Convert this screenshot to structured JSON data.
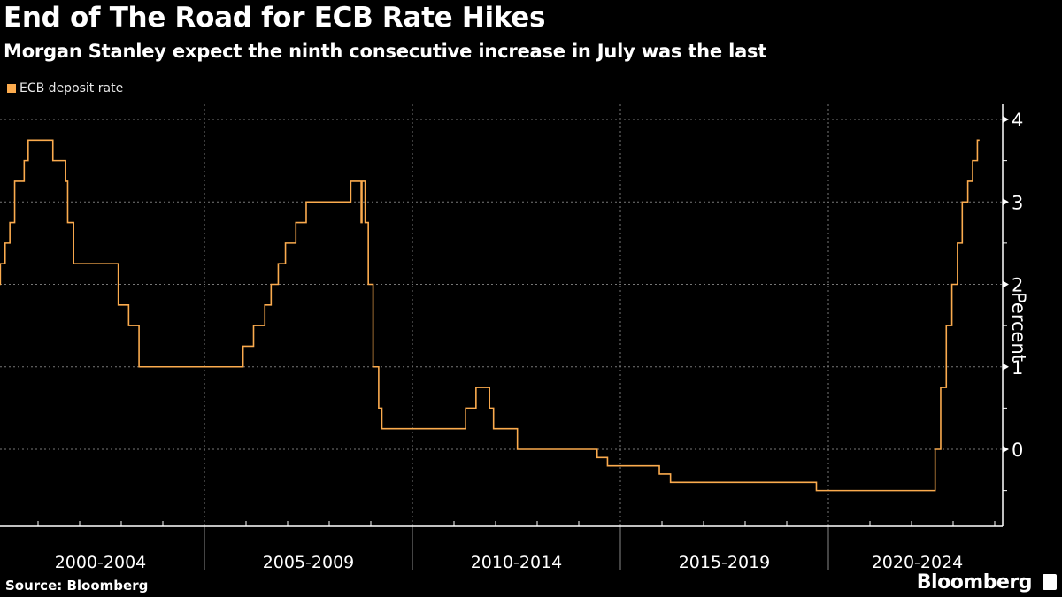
{
  "header": {
    "title": "End of The Road for ECB Rate Hikes",
    "subtitle": "Morgan Stanley expect the ninth consecutive increase in July was the last"
  },
  "footer": {
    "source": "Source: Bloomberg",
    "brand": "Bloomberg"
  },
  "colors": {
    "series": "#fbab4e",
    "background": "#000000",
    "axis": "#ffffff",
    "grid": "#777777"
  },
  "chart_data": {
    "type": "line",
    "step": true,
    "title": "End of The Road for ECB Rate Hikes",
    "subtitle": "Morgan Stanley expect the ninth consecutive increase in July was the last",
    "ylabel": "Percent",
    "y_axis_side": "right",
    "ylim": [
      -0.95,
      4.2
    ],
    "yticks": [
      0,
      1,
      2,
      3,
      4
    ],
    "ytick_labels": [
      "0",
      "1",
      "2",
      "3",
      "4"
    ],
    "xlim": [
      "2000-01-01",
      "2024-03-01"
    ],
    "x_groups": [
      "2000-2004",
      "2005-2009",
      "2010-2014",
      "2015-2019",
      "2020-2024"
    ],
    "grid": true,
    "legend_placement": "top-left",
    "series": [
      {
        "name": "ECB deposit rate",
        "points": [
          [
            "2000-01-10",
            2.0
          ],
          [
            "2000-02-04",
            2.25
          ],
          [
            "2000-03-17",
            2.5
          ],
          [
            "2000-04-28",
            2.75
          ],
          [
            "2000-06-09",
            3.25
          ],
          [
            "2000-09-01",
            3.5
          ],
          [
            "2000-10-06",
            3.75
          ],
          [
            "2001-05-11",
            3.5
          ],
          [
            "2001-08-31",
            3.25
          ],
          [
            "2001-09-18",
            2.75
          ],
          [
            "2001-11-09",
            2.25
          ],
          [
            "2002-12-06",
            1.75
          ],
          [
            "2003-03-07",
            1.5
          ],
          [
            "2003-06-06",
            1.0
          ],
          [
            "2005-12-06",
            1.25
          ],
          [
            "2006-03-08",
            1.5
          ],
          [
            "2006-06-15",
            1.75
          ],
          [
            "2006-08-09",
            2.0
          ],
          [
            "2006-10-11",
            2.25
          ],
          [
            "2006-12-13",
            2.5
          ],
          [
            "2007-03-14",
            2.75
          ],
          [
            "2007-06-13",
            3.0
          ],
          [
            "2008-07-09",
            3.25
          ],
          [
            "2008-10-08",
            2.75
          ],
          [
            "2008-10-15",
            3.25
          ],
          [
            "2008-11-12",
            2.75
          ],
          [
            "2008-12-10",
            2.0
          ],
          [
            "2009-01-21",
            1.0
          ],
          [
            "2009-03-11",
            0.5
          ],
          [
            "2009-04-08",
            0.25
          ],
          [
            "2011-04-13",
            0.5
          ],
          [
            "2011-07-13",
            0.75
          ],
          [
            "2011-11-09",
            0.5
          ],
          [
            "2011-12-14",
            0.25
          ],
          [
            "2012-07-11",
            0.0
          ],
          [
            "2014-06-11",
            -0.1
          ],
          [
            "2014-09-10",
            -0.2
          ],
          [
            "2015-12-09",
            -0.3
          ],
          [
            "2016-03-16",
            -0.4
          ],
          [
            "2019-09-18",
            -0.5
          ],
          [
            "2022-07-27",
            0.0
          ],
          [
            "2022-09-14",
            0.75
          ],
          [
            "2022-11-02",
            1.5
          ],
          [
            "2022-12-21",
            2.0
          ],
          [
            "2023-02-08",
            2.5
          ],
          [
            "2023-03-22",
            3.0
          ],
          [
            "2023-05-10",
            3.25
          ],
          [
            "2023-06-21",
            3.5
          ],
          [
            "2023-08-02",
            3.75
          ],
          [
            "2023-08-20",
            3.75
          ]
        ]
      }
    ]
  }
}
